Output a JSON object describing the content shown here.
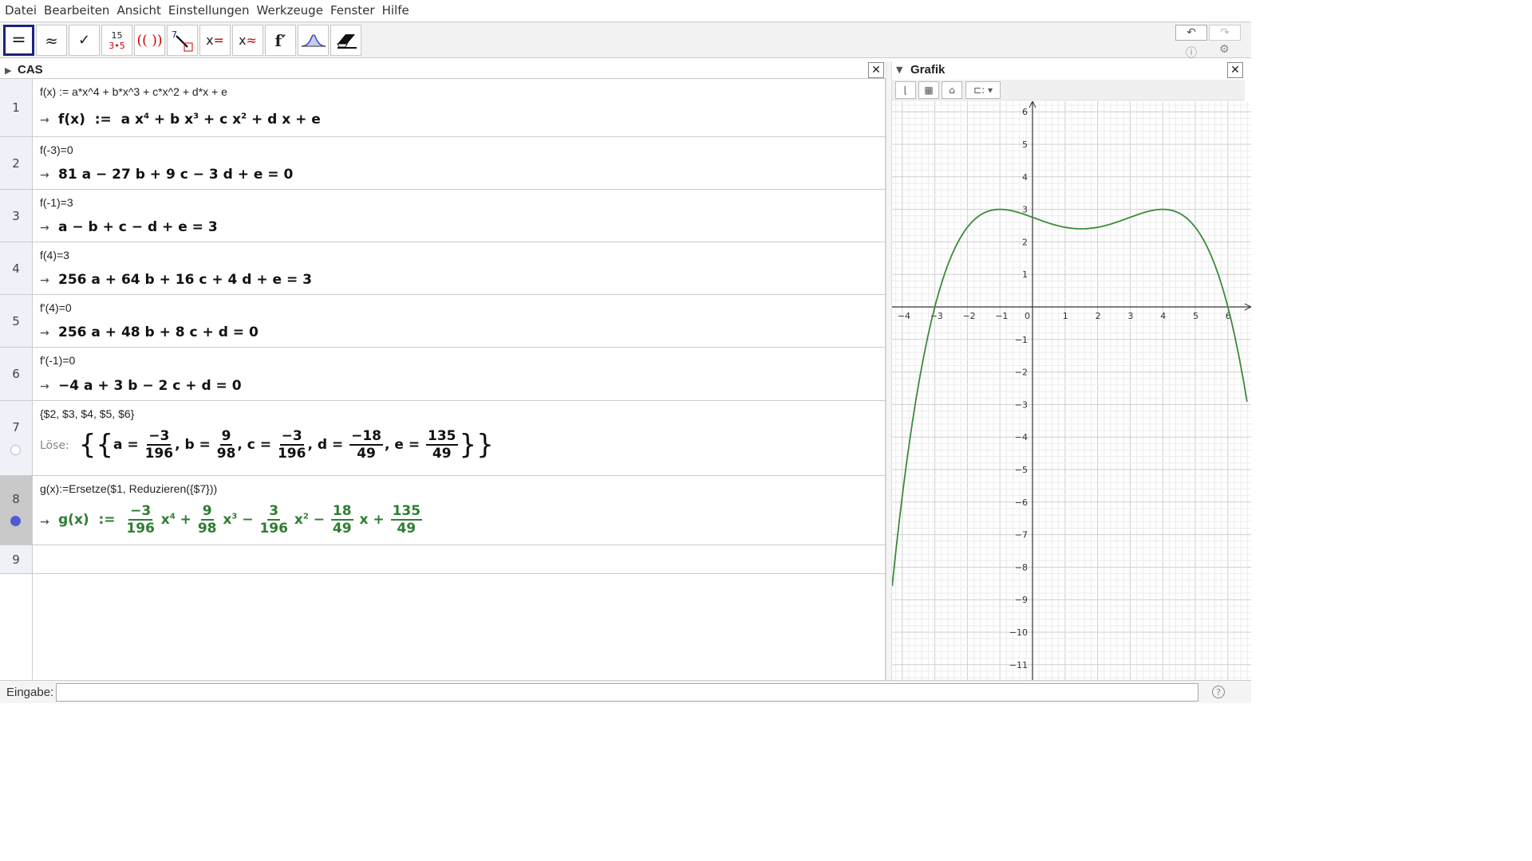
{
  "menu": [
    "Datei",
    "Bearbeiten",
    "Ansicht",
    "Einstellungen",
    "Werkzeuge",
    "Fenster",
    "Hilfe"
  ],
  "toolbar": {
    "tools": [
      {
        "name": "evaluate-tool",
        "label": "="
      },
      {
        "name": "numeric-tool",
        "label": "≈"
      },
      {
        "name": "keep-input-tool",
        "label": "✓"
      },
      {
        "name": "factor-tool",
        "label": "15 3•5"
      },
      {
        "name": "expand-tool",
        "label": "(( ))"
      },
      {
        "name": "substitute-tool",
        "label": "7↘"
      },
      {
        "name": "solve-tool",
        "label": "x="
      },
      {
        "name": "solve-numerically-tool",
        "label": "x≈"
      },
      {
        "name": "derivative-tool",
        "label": "f′"
      },
      {
        "name": "probability-tool",
        "label": "⩘"
      },
      {
        "name": "delete-tool",
        "label": "⌫"
      }
    ],
    "undo_icon": "undo-icon",
    "redo_icon": "redo-icon",
    "help_icon": "help-icon",
    "settings_icon": "gear-icon"
  },
  "cas": {
    "title": "CAS",
    "rows": [
      {
        "num": "1",
        "input": "f(x) := a*x^4 + b*x^3 + c*x^2 + d*x + e",
        "arrow": "→"
      },
      {
        "num": "2",
        "input": "f(-3)=0",
        "arrow": "→",
        "output": "81 a − 27 b + 9 c − 3 d + e = 0"
      },
      {
        "num": "3",
        "input": "f(-1)=3",
        "arrow": "→",
        "output": "a − b + c − d + e = 3"
      },
      {
        "num": "4",
        "input": "f(4)=3",
        "arrow": "→",
        "output": "256 a + 64 b + 16 c + 4 d + e = 3"
      },
      {
        "num": "5",
        "input": "f'(4)=0",
        "arrow": "→",
        "output": "256 a + 48 b + 8 c + d = 0"
      },
      {
        "num": "6",
        "input": "f'(-1)=0",
        "arrow": "→",
        "output": "−4 a + 3 b − 2 c + d = 0"
      },
      {
        "num": "7",
        "input": "{$2, $3, $4, $5, $6}",
        "loese": "Löse:"
      },
      {
        "num": "8",
        "input": "g(x):=Ersetze($1, Reduzieren({$7}))",
        "arrow": "→"
      },
      {
        "num": "9",
        "input": ""
      }
    ]
  },
  "grafik": {
    "title": "Grafik",
    "x_ticks": [
      "−4",
      "−3",
      "−2",
      "−1",
      "0",
      "1",
      "2",
      "3",
      "4",
      "5",
      "6"
    ],
    "y_ticks": [
      "6",
      "5",
      "4",
      "3",
      "2",
      "1",
      "−1",
      "−2",
      "−3",
      "−4",
      "−5",
      "−6",
      "−7",
      "−8",
      "−9",
      "−10",
      "−11"
    ],
    "curve_color": "#3b8a3b"
  },
  "chart_data": {
    "type": "line",
    "title": "",
    "xlabel": "",
    "ylabel": "",
    "xlim": [
      -4.4,
      6.6
    ],
    "ylim": [
      -11.5,
      6.3
    ],
    "grid": true,
    "series": [
      {
        "name": "g(x)",
        "coefficients": {
          "a": "-3/196",
          "b": "9/98",
          "c": "-3/196",
          "d": "-18/49",
          "e": "135/49"
        }
      }
    ]
  },
  "inputbar": {
    "label": "Eingabe:",
    "placeholder": ""
  }
}
